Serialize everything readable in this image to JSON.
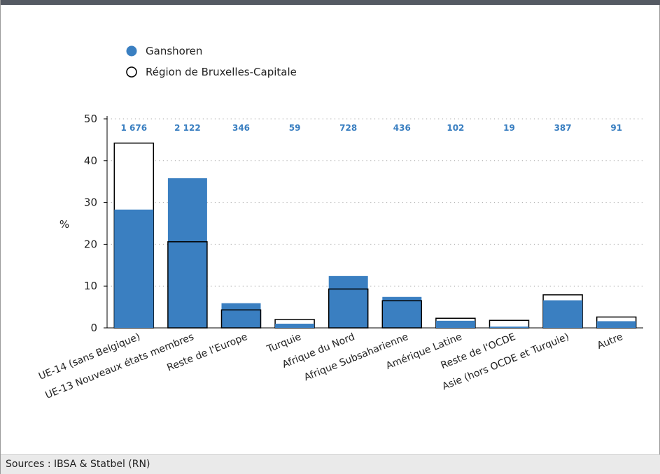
{
  "footer": {
    "source": "Sources : IBSA & Statbel (RN)"
  },
  "colors": {
    "ganshoren": "#3a7fc1",
    "region_fill": "#ffffff",
    "region_stroke": "#000000",
    "count_label": "#3a7fc1"
  },
  "chart_data": {
    "type": "bar",
    "title": "",
    "xlabel": "",
    "ylabel": "%",
    "ylim": [
      0,
      50
    ],
    "yticks": [
      0,
      10,
      20,
      30,
      40,
      50
    ],
    "grid": true,
    "legend_position": "top-left",
    "categories": [
      "UE-14 (sans Belgique)",
      "UE-13 Nouveaux états membres",
      "Reste de l'Europe",
      "Turquie",
      "Afrique du Nord",
      "Afrique Subsaharienne",
      "Amérique Latine",
      "Reste de l'OCDE",
      "Asie (hors OCDE et Turquie)",
      "Autre"
    ],
    "count_labels": [
      "1 676",
      "2 122",
      "346",
      "59",
      "728",
      "436",
      "102",
      "19",
      "387",
      "91"
    ],
    "series": [
      {
        "name": "Ganshoren",
        "style": "filled",
        "values": [
          28.3,
          35.8,
          5.9,
          1.0,
          12.4,
          7.4,
          1.7,
          0.3,
          6.6,
          1.6
        ]
      },
      {
        "name": "Région de Bruxelles-Capitale",
        "style": "outline",
        "values": [
          44.2,
          20.6,
          4.3,
          2.0,
          9.3,
          6.5,
          2.3,
          1.8,
          7.9,
          2.6
        ]
      }
    ]
  }
}
